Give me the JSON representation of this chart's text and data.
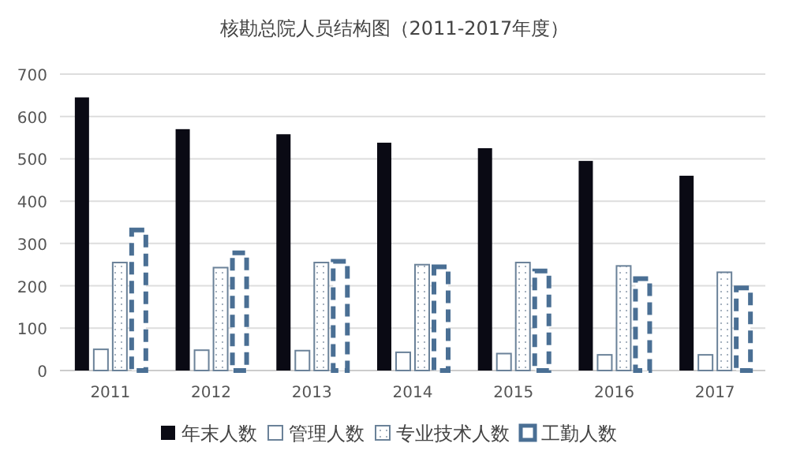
{
  "chart_data": {
    "type": "bar",
    "title": "核勘总院人员结构图（2011-2017年度）",
    "categories": [
      "2011",
      "2012",
      "2013",
      "2014",
      "2015",
      "2016",
      "2017"
    ],
    "series": [
      {
        "name": "年末人数",
        "color": "#0a0a14",
        "values": [
          645,
          570,
          558,
          538,
          525,
          495,
          460
        ]
      },
      {
        "name": "管理人数",
        "color": "#6b8299",
        "values": [
          50,
          48,
          47,
          43,
          40,
          37,
          37
        ]
      },
      {
        "name": "专业技术人数",
        "color": "#6b8299",
        "values": [
          255,
          243,
          255,
          250,
          255,
          247,
          232
        ]
      },
      {
        "name": "工勤人数",
        "color": "#4a6f94",
        "line_style": "dashed",
        "values": [
          332,
          278,
          258,
          245,
          235,
          217,
          195
        ]
      }
    ],
    "ylim": [
      0,
      700
    ],
    "yticks": [
      0,
      100,
      200,
      300,
      400,
      500,
      600,
      700
    ],
    "grid": "y",
    "legend": "bottom"
  }
}
